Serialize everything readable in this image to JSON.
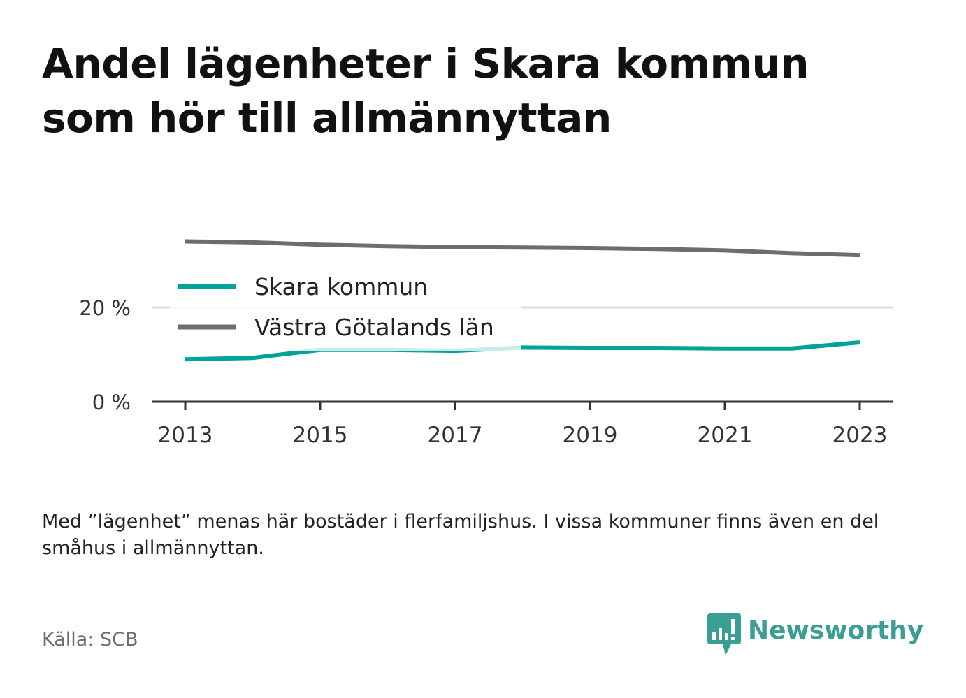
{
  "title": "Andel lägenheter i Skara kommun som hör till allmännyttan",
  "note": "Med ”lägenhet” menas här bostäder i flerfamiljshus. I vissa kommuner finns även en del småhus i allmännyttan.",
  "source": "Källa: SCB",
  "brand": "Newsworthy",
  "colors": {
    "skara": "#00a39a",
    "vastra": "#6d6c74",
    "grid": "#dedede",
    "axis": "#333333",
    "brand": "#3a9e94"
  },
  "chart_data": {
    "type": "line",
    "x": [
      2013,
      2014,
      2015,
      2016,
      2017,
      2018,
      2019,
      2020,
      2021,
      2022,
      2023
    ],
    "x_ticks": [
      "2013",
      "2015",
      "2017",
      "2019",
      "2021",
      "2023"
    ],
    "y_ticks": [
      "0 %",
      "20 %"
    ],
    "ylim": [
      0,
      40
    ],
    "grid": true,
    "legend_position": "upper-left inside plot",
    "series": [
      {
        "name": "Skara kommun",
        "values": [
          9.0,
          9.3,
          11.0,
          11.0,
          10.8,
          11.5,
          11.4,
          11.4,
          11.3,
          11.3,
          12.6
        ]
      },
      {
        "name": "Västra Götalands län",
        "values": [
          34.0,
          33.8,
          33.3,
          33.0,
          32.8,
          32.7,
          32.6,
          32.4,
          32.1,
          31.5,
          31.1
        ]
      }
    ]
  }
}
